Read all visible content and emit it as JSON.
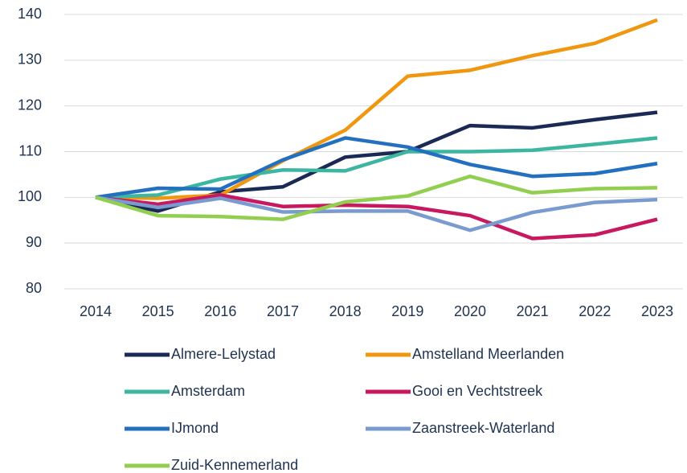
{
  "chart_data": {
    "type": "line",
    "x": [
      2014,
      2015,
      2016,
      2017,
      2018,
      2019,
      2020,
      2021,
      2022,
      2023
    ],
    "series": [
      {
        "name": "Almere-Lelystad",
        "color": "#1b2a55",
        "values": [
          100,
          97,
          101.2,
          102.3,
          108.8,
          110,
          115.7,
          115.2,
          117,
          118.6
        ]
      },
      {
        "name": "Amstelland Meerlanden",
        "color": "#f0960f",
        "values": [
          100,
          99.8,
          100.5,
          108,
          114.7,
          126.5,
          127.8,
          131,
          133.7,
          138.8
        ]
      },
      {
        "name": "Amsterdam",
        "color": "#3cb6a0",
        "values": [
          100,
          100.5,
          104,
          106,
          105.8,
          110,
          110,
          110.3,
          111.6,
          113
        ]
      },
      {
        "name": "Gooi en Vechtstreek",
        "color": "#c8185f",
        "values": [
          100,
          98.5,
          100.5,
          98,
          98.3,
          98,
          96,
          91,
          91.8,
          95.2
        ]
      },
      {
        "name": "IJmond",
        "color": "#2470c0",
        "values": [
          100,
          102,
          101.8,
          108.2,
          113,
          111,
          107.2,
          104.6,
          105.2,
          107.4
        ]
      },
      {
        "name": "Zaanstreek-Waterland",
        "color": "#7a9bd0",
        "values": [
          100,
          97.8,
          99.8,
          96.8,
          97,
          97,
          92.8,
          96.7,
          98.9,
          99.5
        ]
      },
      {
        "name": "Zuid-Kennemerland",
        "color": "#92cf50",
        "values": [
          100,
          96,
          95.8,
          95.2,
          99,
          100.3,
          104.6,
          101,
          101.9,
          102.1
        ]
      }
    ],
    "xlim": [
      2014,
      2023
    ],
    "xticks": [
      2014,
      2015,
      2016,
      2017,
      2018,
      2019,
      2020,
      2021,
      2022,
      2023
    ],
    "ylim": [
      80,
      140
    ],
    "yticks": [
      80,
      90,
      100,
      110,
      120,
      130,
      140
    ],
    "grid": true
  }
}
